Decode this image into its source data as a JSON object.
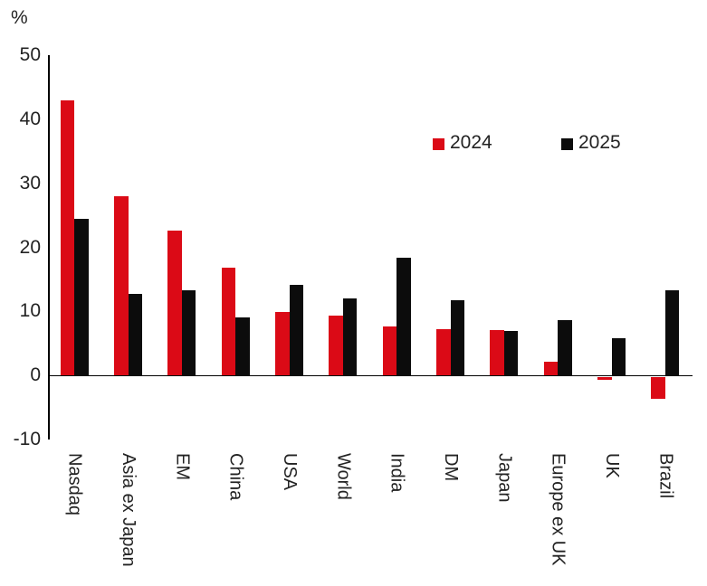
{
  "chart_data": {
    "type": "bar",
    "title": "",
    "unit_label": "%",
    "categories": [
      "Nasdaq",
      "Asia ex Japan",
      "EM",
      "China",
      "USA",
      "World",
      "India",
      "DM",
      "Japan",
      "Europe ex UK",
      "UK",
      "Brazil"
    ],
    "series": [
      {
        "name": "2024",
        "color": "#db0a16",
        "values": [
          43.0,
          28.0,
          22.6,
          16.8,
          9.9,
          9.3,
          7.6,
          7.2,
          7.1,
          2.1,
          -0.5,
          -3.4
        ]
      },
      {
        "name": "2025",
        "color": "#0c0c0c",
        "values": [
          24.5,
          12.7,
          13.3,
          9.1,
          14.1,
          12.1,
          18.4,
          11.8,
          6.9,
          8.6,
          5.8,
          13.3
        ]
      }
    ],
    "yticks": [
      50,
      40,
      30,
      20,
      10,
      0,
      -10
    ],
    "ylim": [
      -10,
      50
    ],
    "ylabel": "%",
    "xlabel": "",
    "grid": false,
    "legend_position": "inside-upper-right",
    "axis_color": "#000000",
    "text_color": "#232323"
  }
}
